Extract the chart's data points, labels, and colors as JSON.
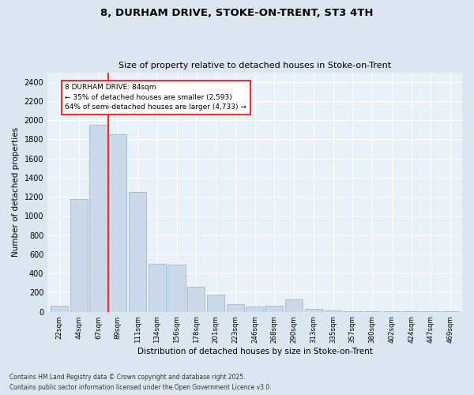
{
  "title1": "8, DURHAM DRIVE, STOKE-ON-TRENT, ST3 4TH",
  "title2": "Size of property relative to detached houses in Stoke-on-Trent",
  "xlabel": "Distribution of detached houses by size in Stoke-on-Trent",
  "ylabel": "Number of detached properties",
  "categories": [
    "22sqm",
    "44sqm",
    "67sqm",
    "89sqm",
    "111sqm",
    "134sqm",
    "156sqm",
    "178sqm",
    "201sqm",
    "223sqm",
    "246sqm",
    "268sqm",
    "290sqm",
    "313sqm",
    "335sqm",
    "357sqm",
    "380sqm",
    "402sqm",
    "424sqm",
    "447sqm",
    "469sqm"
  ],
  "values": [
    60,
    1175,
    1950,
    1850,
    1250,
    500,
    490,
    265,
    175,
    80,
    55,
    60,
    130,
    30,
    15,
    5,
    5,
    3,
    2,
    2,
    2
  ],
  "bar_color": "#c9d9ea",
  "bar_edge_color": "#8ab4d0",
  "vline_x": 2.5,
  "vline_color": "red",
  "annotation_text": "8 DURHAM DRIVE: 84sqm\n← 35% of detached houses are smaller (2,593)\n64% of semi-detached houses are larger (4,733) →",
  "annotation_box_color": "white",
  "annotation_box_edge": "red",
  "ylim": [
    0,
    2500
  ],
  "yticks": [
    0,
    200,
    400,
    600,
    800,
    1000,
    1200,
    1400,
    1600,
    1800,
    2000,
    2200,
    2400
  ],
  "footer1": "Contains HM Land Registry data © Crown copyright and database right 2025.",
  "footer2": "Contains public sector information licensed under the Open Government Licence v3.0.",
  "bg_color": "#dce6f0",
  "plot_bg_color": "#e8f0f8"
}
